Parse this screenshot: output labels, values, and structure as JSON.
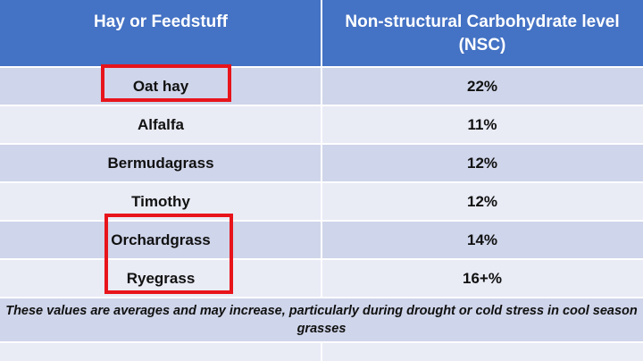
{
  "table": {
    "header": [
      "Hay or Feedstuff",
      "Non-structural Carbohydrate level (NSC)"
    ],
    "rows": [
      [
        "Oat hay",
        "22%"
      ],
      [
        "Alfalfa",
        "11%"
      ],
      [
        "Bermudagrass",
        "12%"
      ],
      [
        "Timothy",
        "12%"
      ],
      [
        "Orchardgrass",
        "14%"
      ],
      [
        "Ryegrass",
        "16+%"
      ]
    ],
    "footnote": "These values are averages and may increase, particularly during drought or cold stress in cool season grasses"
  }
}
